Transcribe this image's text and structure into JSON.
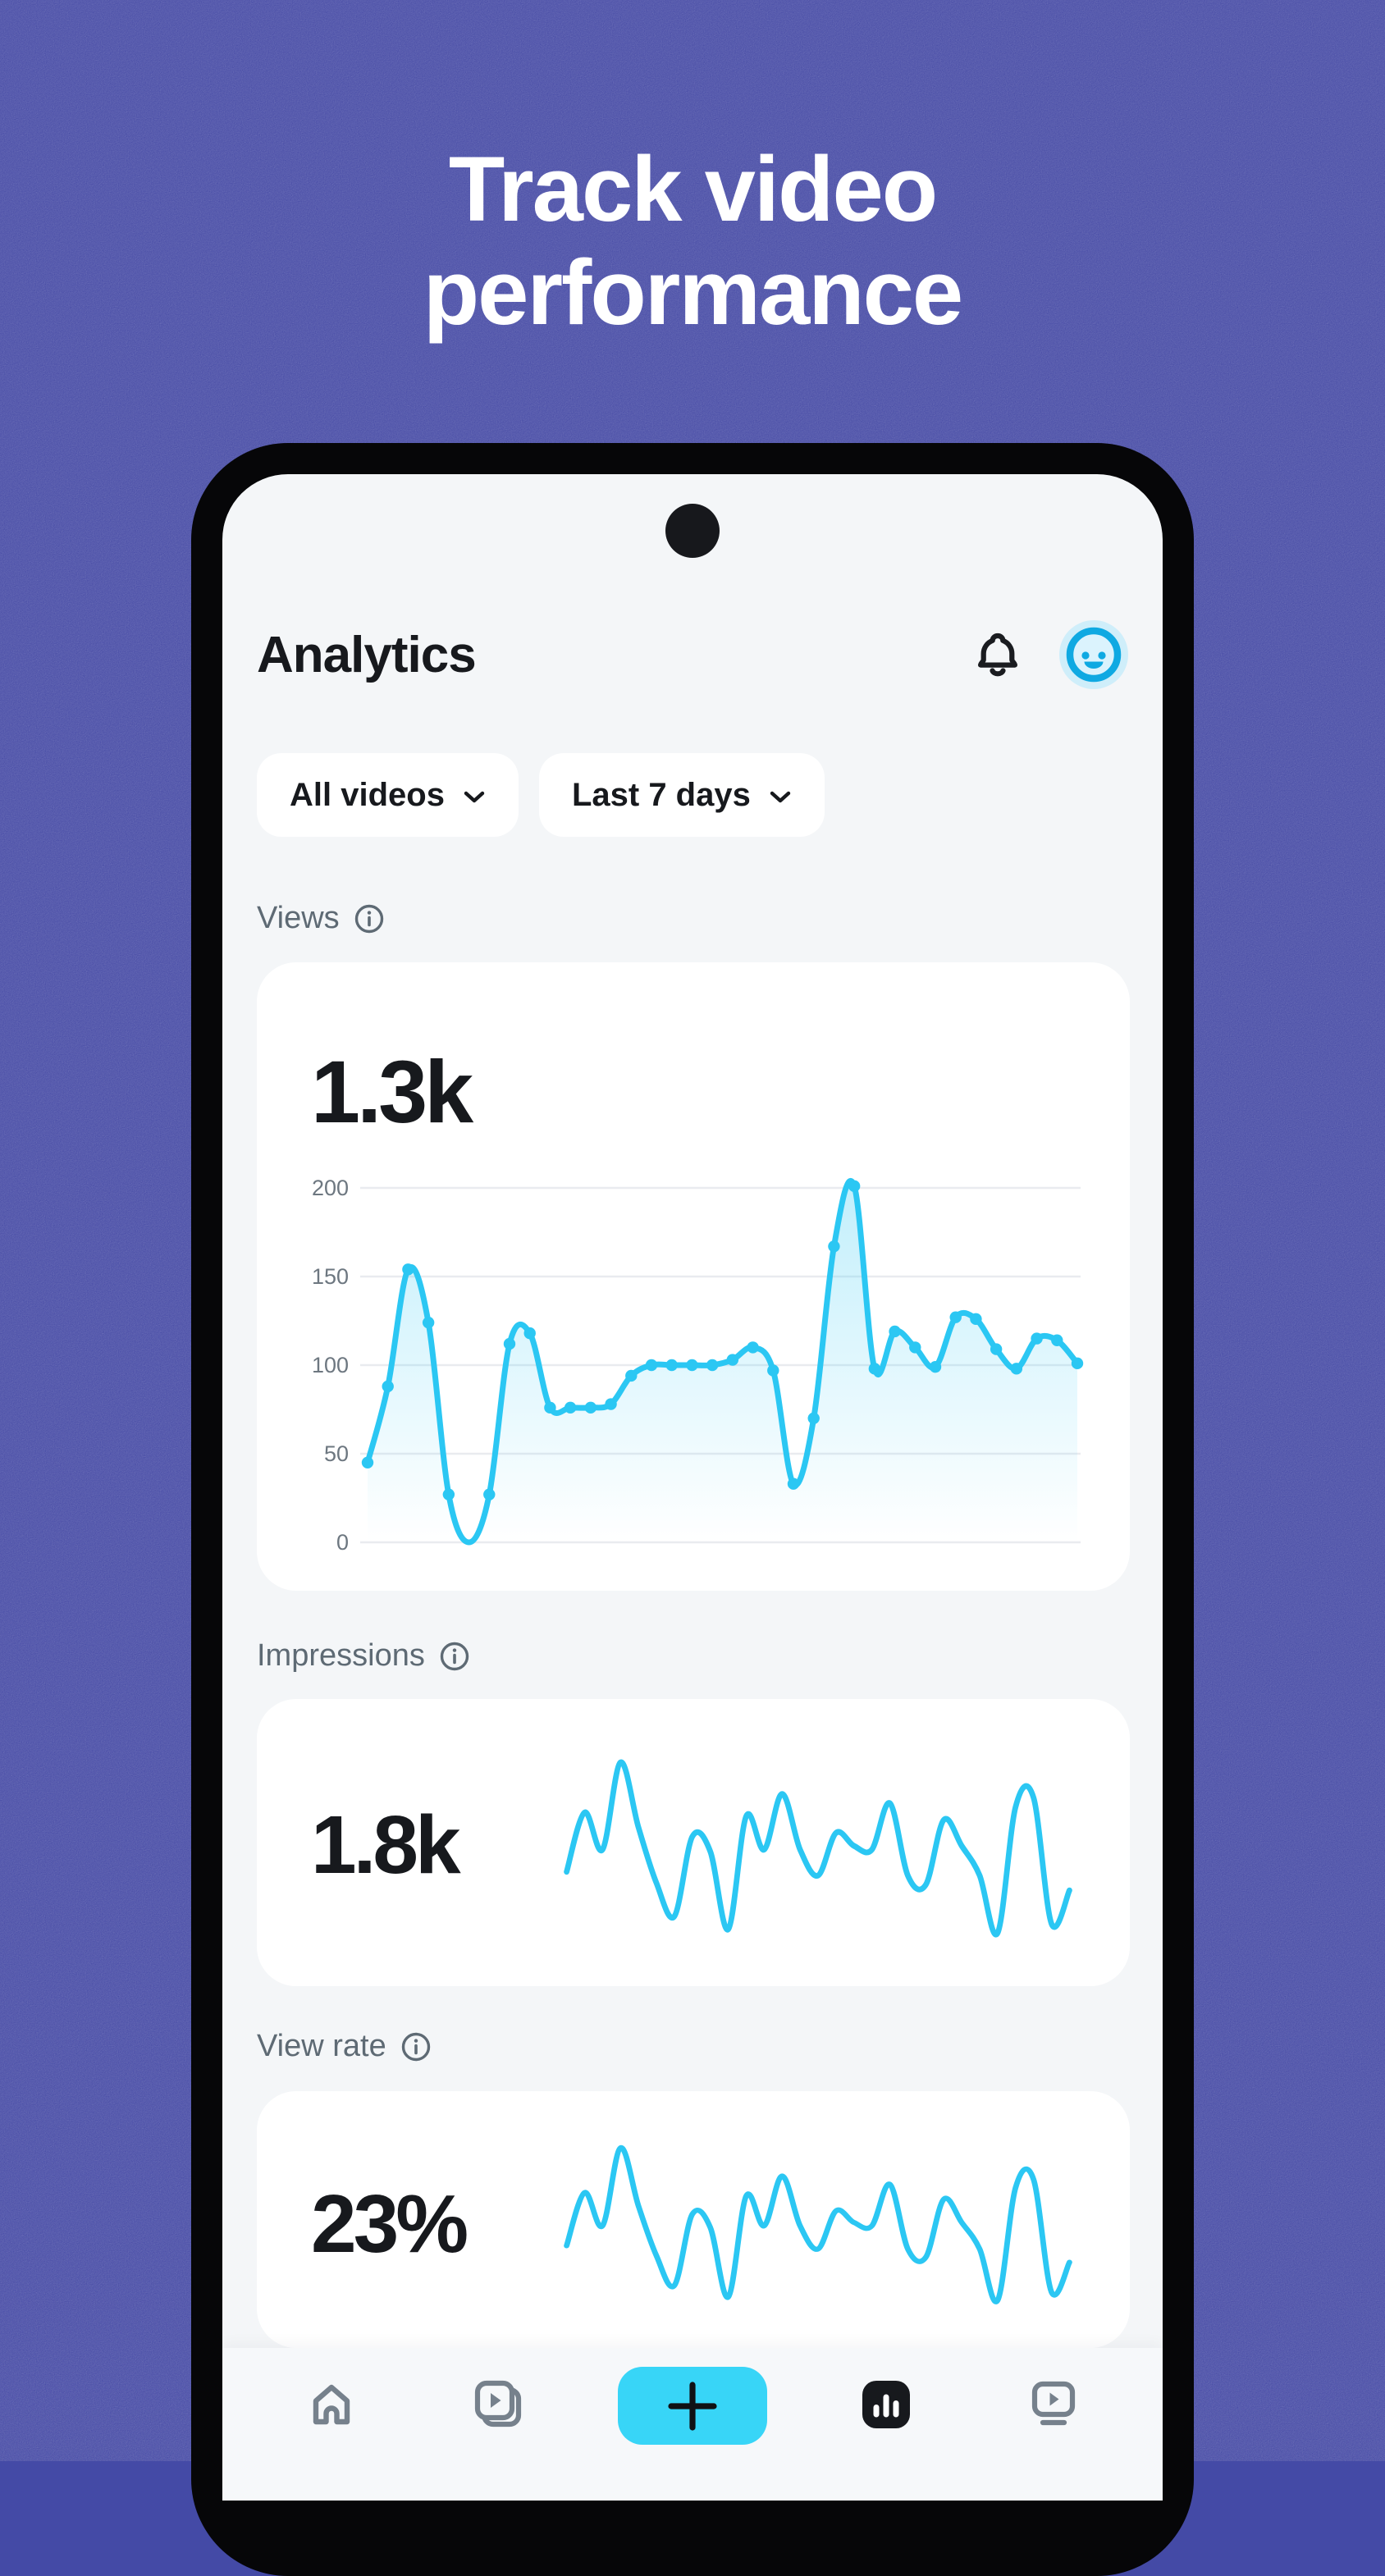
{
  "hero": {
    "line1": "Track video",
    "line2": "performance"
  },
  "header": {
    "title": "Analytics"
  },
  "filters": {
    "all_videos": "All videos",
    "last_7_days": "Last 7 days"
  },
  "views": {
    "label": "Views",
    "value": "1.3k"
  },
  "impressions": {
    "label": "Impressions",
    "value": "1.8k"
  },
  "view_rate": {
    "label": "View rate",
    "value": "23%"
  },
  "nav": {
    "items": [
      "home",
      "clips",
      "create",
      "analytics",
      "watch"
    ],
    "active": "analytics"
  },
  "icons": {
    "bell": "bell-icon",
    "avatar": "smiley-avatar",
    "info": "info-icon",
    "chevron": "chevron-down-icon",
    "home": "home-icon",
    "clips": "stacked-video-icon",
    "create": "plus-icon",
    "analytics": "bar-chart-icon",
    "watch": "tv-play-icon"
  },
  "colors": {
    "background_purple": "#444aa6",
    "accent_cyan": "#2bc7f3",
    "create_button_cyan": "#38d5f7",
    "avatar_ring_blue": "#0fa9e2",
    "avatar_halo": "#cfeefa",
    "avatar_face": "#dbf3fd",
    "text_dark": "#17191d",
    "label_gray": "#5e6a74",
    "tick_gray": "#6d7780",
    "gridline": "#e9ebef",
    "nav_inactive_gray": "#76818c",
    "screen_bg": "#f4f6f8",
    "card_bg": "#ffffff"
  },
  "chart_data": [
    {
      "id": "views-trend",
      "type": "line",
      "title": "Views",
      "big_value": "1.3k",
      "values": [
        45,
        88,
        154,
        124,
        27,
        0,
        27,
        112,
        118,
        76,
        76,
        76,
        78,
        94,
        100,
        100,
        100,
        100,
        103,
        110,
        97,
        33,
        70,
        167,
        201,
        98,
        119,
        110,
        99,
        127,
        126,
        109,
        98,
        115,
        114,
        101
      ],
      "marker_skip_indices": [
        5
      ],
      "markers": true,
      "yticks": [
        0,
        50,
        100,
        150,
        200
      ],
      "ylim": [
        0,
        200
      ],
      "grid": true,
      "area_fill": true,
      "legend": false,
      "xlabel": "",
      "ylabel": ""
    },
    {
      "id": "impressions-trend",
      "type": "line",
      "title": "Impressions",
      "big_value": "1.8k",
      "values": [
        36,
        68,
        48,
        95,
        60,
        30,
        12,
        55,
        47,
        5,
        66,
        48,
        78,
        48,
        34,
        57,
        50,
        48,
        73,
        34,
        29,
        64,
        50,
        34,
        3,
        71,
        76,
        8,
        26
      ],
      "markers": false,
      "grid": false,
      "area_fill": false,
      "ylim": [
        0,
        100
      ],
      "legend": false
    },
    {
      "id": "view-rate-trend",
      "type": "line",
      "title": "View rate",
      "big_value": "23%",
      "values": [
        36,
        68,
        48,
        95,
        60,
        30,
        12,
        55,
        47,
        5,
        66,
        48,
        78,
        48,
        34,
        57,
        50,
        48,
        73,
        34,
        29,
        64,
        50,
        34,
        3,
        71,
        76,
        8,
        26
      ],
      "markers": false,
      "grid": false,
      "area_fill": false,
      "ylim": [
        0,
        100
      ],
      "legend": false
    }
  ]
}
